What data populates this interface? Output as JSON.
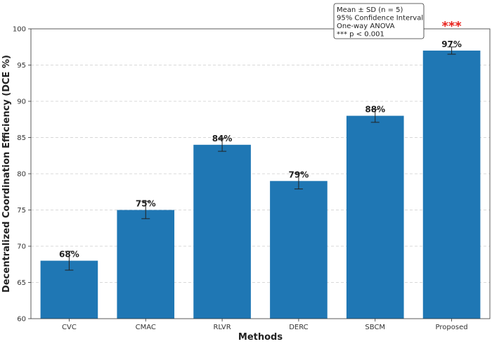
{
  "chart_data": {
    "type": "bar",
    "categories": [
      "CVC",
      "CMAC",
      "RLVR",
      "DERC",
      "SBCM",
      "Proposed"
    ],
    "values": [
      68,
      75,
      84,
      79,
      88,
      97
    ],
    "errors": [
      1.3,
      1.2,
      0.9,
      1.1,
      0.9,
      0.5
    ],
    "data_labels": [
      "68%",
      "75%",
      "84%",
      "79%",
      "88%",
      "97%"
    ],
    "xlabel": "Methods",
    "ylabel": "Decentralized Coordination Efficiency (DCE %)",
    "ylim": [
      60,
      100
    ],
    "yticks": [
      60,
      65,
      70,
      75,
      80,
      85,
      90,
      95,
      100
    ],
    "grid": "horizontal dashed",
    "bar_color": "#1f77b4",
    "significance": {
      "category": "Proposed",
      "label": "***",
      "color": "#e8221c"
    },
    "annotation_box": {
      "placement": "top-right",
      "lines": [
        "Mean ± SD (n = 5)",
        "95% Confidence Interval",
        "One-way ANOVA",
        "*** p < 0.001"
      ]
    }
  }
}
